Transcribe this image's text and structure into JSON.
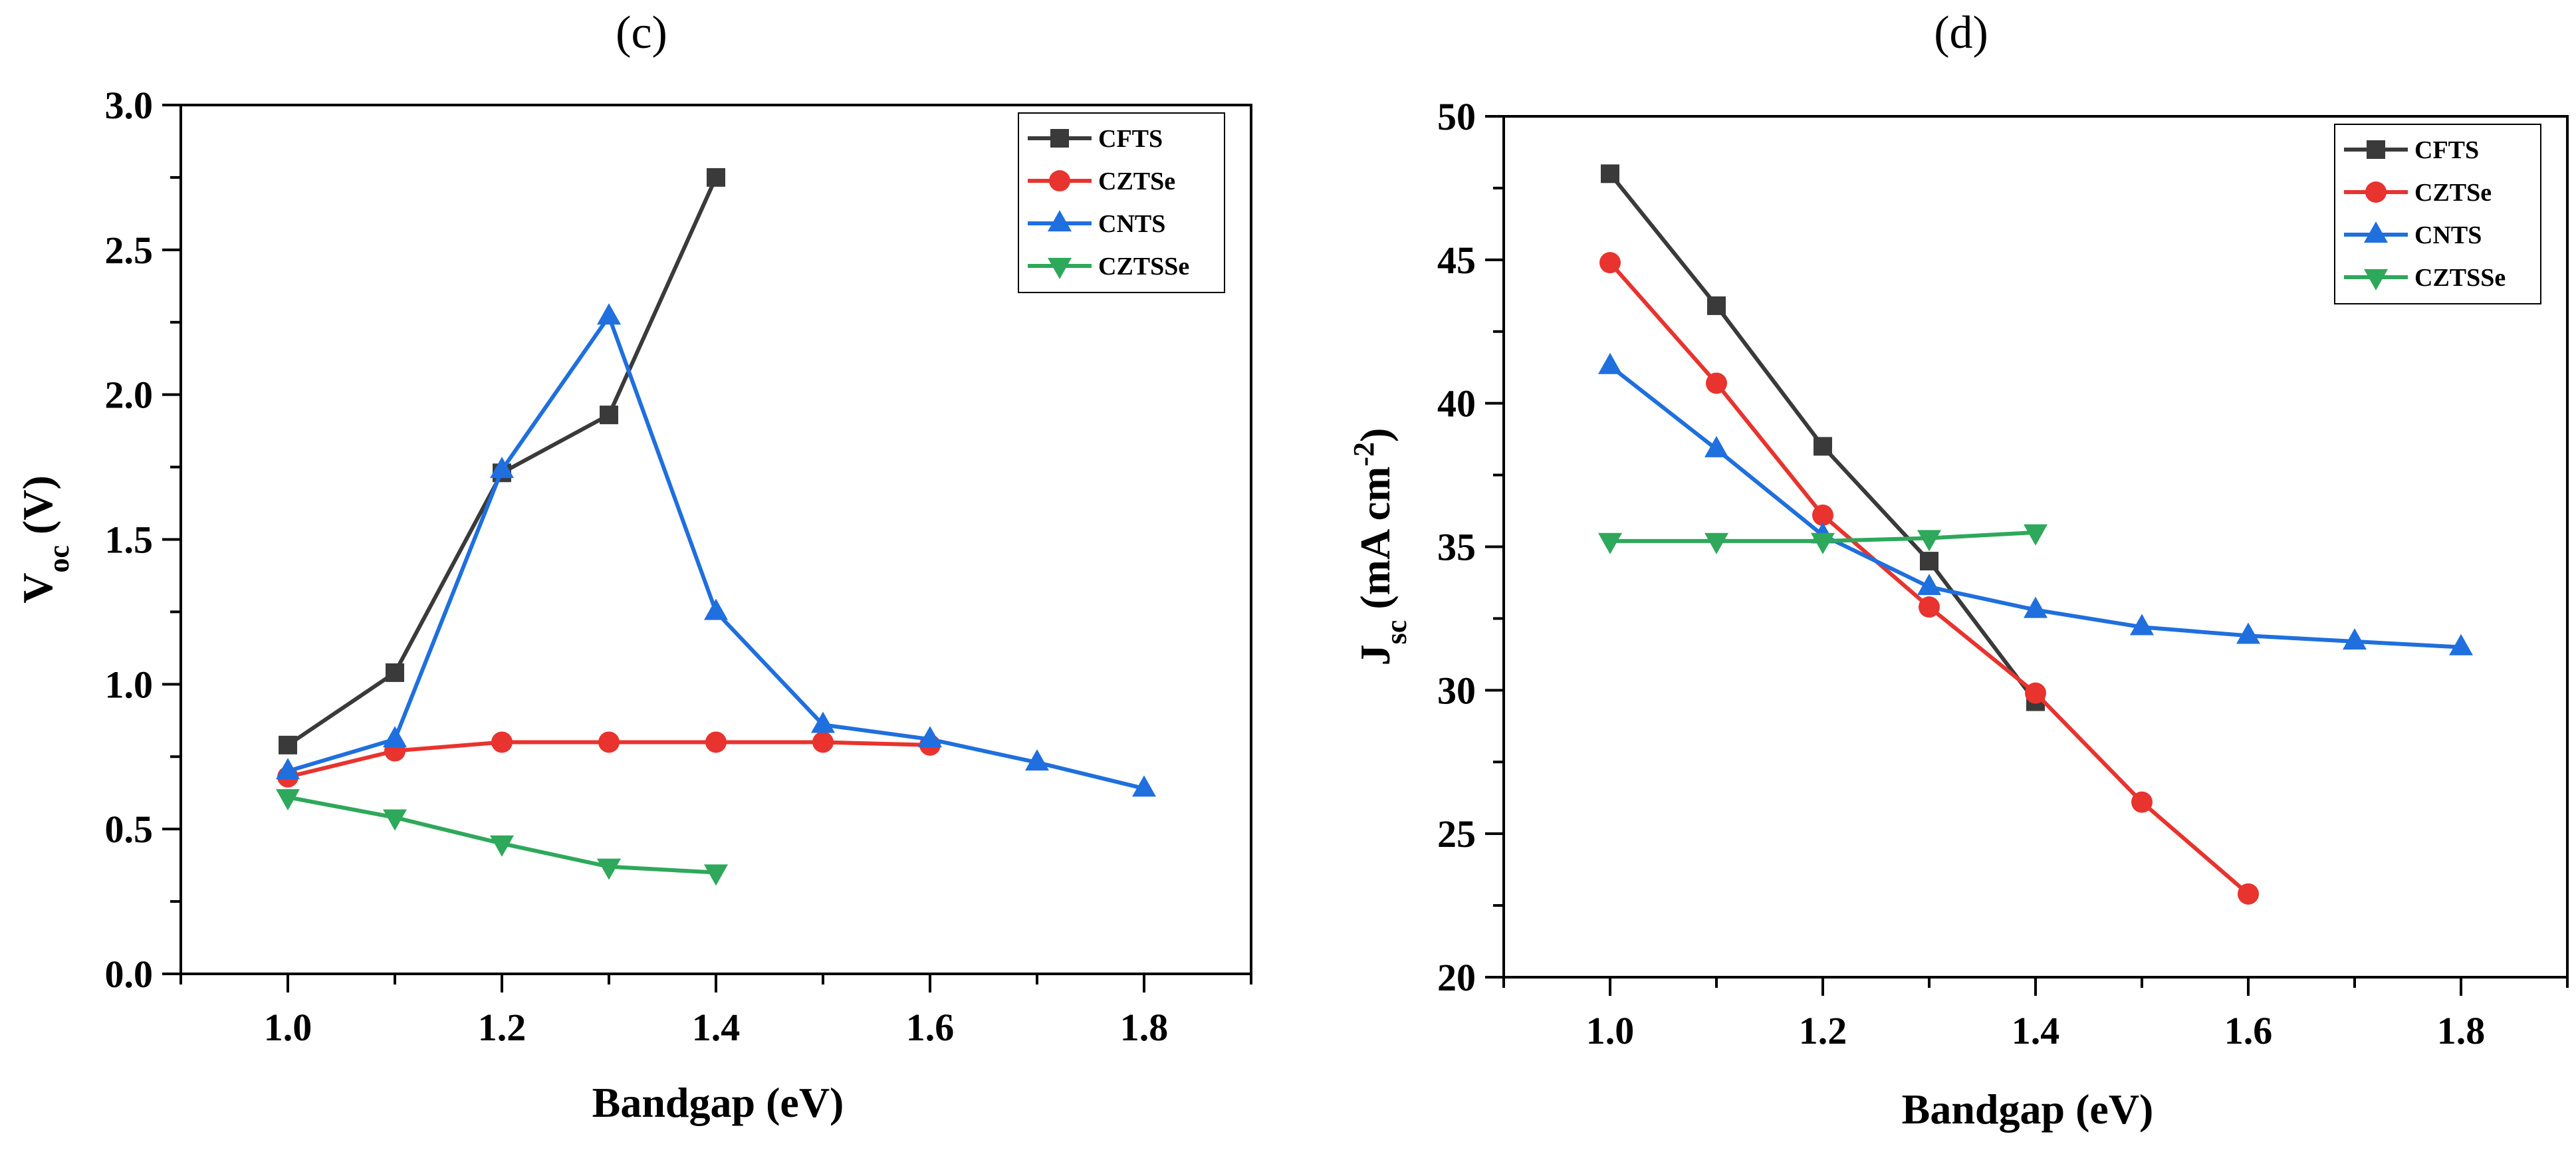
{
  "chart_data": [
    {
      "type": "line",
      "panel_label": "(c)",
      "title": "",
      "xlabel": "Bandgap (eV)",
      "ylabel": {
        "base": "V",
        "sub": "oc",
        "rest": " (V)"
      },
      "xlim": [
        0.9,
        1.9
      ],
      "ylim": [
        0.0,
        3.0
      ],
      "xticks": [
        1.0,
        1.2,
        1.4,
        1.6,
        1.8
      ],
      "xtick_labels": [
        "1.0",
        "1.2",
        "1.4",
        "1.6",
        "1.8"
      ],
      "yticks": [
        0.0,
        0.5,
        1.0,
        1.5,
        2.0,
        2.5,
        3.0
      ],
      "ytick_labels": [
        "0.0",
        "0.5",
        "1.0",
        "1.5",
        "2.0",
        "2.5",
        "3.0"
      ],
      "grid": false,
      "legend_position": "top-right",
      "series": [
        {
          "name": "CFTS",
          "color": "#3a3a3a",
          "marker": "square",
          "x": [
            1.0,
            1.1,
            1.2,
            1.3,
            1.4
          ],
          "y": [
            0.79,
            1.04,
            1.73,
            1.93,
            2.75
          ]
        },
        {
          "name": "CZTSe",
          "color": "#e8332e",
          "marker": "circle",
          "x": [
            1.0,
            1.1,
            1.2,
            1.3,
            1.4,
            1.5,
            1.6
          ],
          "y": [
            0.68,
            0.77,
            0.8,
            0.8,
            0.8,
            0.8,
            0.79
          ]
        },
        {
          "name": "CNTS",
          "color": "#1f6fde",
          "marker": "triangle-up",
          "x": [
            1.0,
            1.1,
            1.2,
            1.3,
            1.4,
            1.5,
            1.6,
            1.7,
            1.8
          ],
          "y": [
            0.7,
            0.81,
            1.74,
            2.27,
            1.25,
            0.86,
            0.81,
            0.73,
            0.64
          ]
        },
        {
          "name": "CZTSSe",
          "color": "#2ea85a",
          "marker": "triangle-down",
          "x": [
            1.0,
            1.1,
            1.2,
            1.3,
            1.4
          ],
          "y": [
            0.61,
            0.54,
            0.45,
            0.37,
            0.35
          ]
        }
      ]
    },
    {
      "type": "line",
      "panel_label": "(d)",
      "title": "",
      "xlabel": "Bandgap (eV)",
      "ylabel": {
        "base": "J",
        "sub": "sc",
        "rest": " (mA cm",
        "sup": "-2",
        "end": ")"
      },
      "xlim": [
        0.9,
        1.9
      ],
      "ylim": [
        20,
        50
      ],
      "xticks": [
        1.0,
        1.2,
        1.4,
        1.6,
        1.8
      ],
      "xtick_labels": [
        "1.0",
        "1.2",
        "1.4",
        "1.6",
        "1.8"
      ],
      "yticks": [
        20,
        25,
        30,
        35,
        40,
        45,
        50
      ],
      "ytick_labels": [
        "20",
        "25",
        "30",
        "35",
        "40",
        "45",
        "50"
      ],
      "grid": false,
      "legend_position": "top-right",
      "series": [
        {
          "name": "CFTS",
          "color": "#3a3a3a",
          "marker": "square",
          "x": [
            1.0,
            1.1,
            1.2,
            1.3,
            1.4
          ],
          "y": [
            48.0,
            43.4,
            38.5,
            34.5,
            29.6
          ]
        },
        {
          "name": "CZTSe",
          "color": "#e8332e",
          "marker": "circle",
          "x": [
            1.0,
            1.1,
            1.2,
            1.3,
            1.4,
            1.5,
            1.6
          ],
          "y": [
            44.9,
            40.7,
            36.1,
            32.9,
            29.9,
            26.1,
            22.9
          ]
        },
        {
          "name": "CNTS",
          "color": "#1f6fde",
          "marker": "triangle-up",
          "x": [
            1.0,
            1.1,
            1.2,
            1.3,
            1.4,
            1.5,
            1.6,
            1.7,
            1.8
          ],
          "y": [
            41.3,
            38.4,
            35.4,
            33.6,
            32.8,
            32.2,
            31.9,
            31.7,
            31.5
          ]
        },
        {
          "name": "CZTSSe",
          "color": "#2ea85a",
          "marker": "triangle-down",
          "x": [
            1.0,
            1.1,
            1.2,
            1.3,
            1.4
          ],
          "y": [
            35.2,
            35.2,
            35.2,
            35.3,
            35.5
          ]
        }
      ]
    }
  ]
}
